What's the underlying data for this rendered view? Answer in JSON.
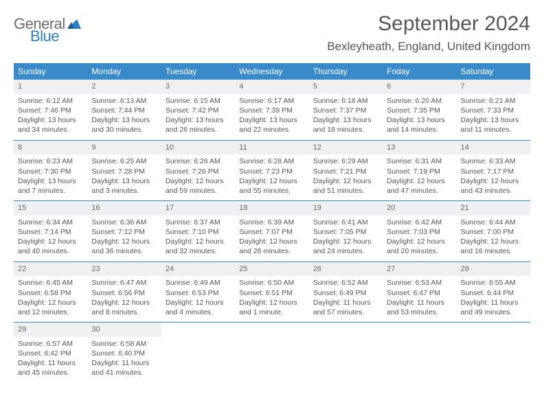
{
  "logo": {
    "word1": "General",
    "word2": "Blue",
    "accent_color": "#2f7fbf",
    "gray_color": "#6a6a6a"
  },
  "header": {
    "month": "September 2024",
    "location": "Bexleyheath, England, United Kingdom"
  },
  "colors": {
    "header_bg": "#3a8ac9",
    "row_divider": "#3a8ac9",
    "daynum_bg": "#eef0f1",
    "text": "#555555"
  },
  "weekdays": [
    "Sunday",
    "Monday",
    "Tuesday",
    "Wednesday",
    "Thursday",
    "Friday",
    "Saturday"
  ],
  "weeks": [
    [
      {
        "n": "1",
        "sr": "Sunrise: 6:12 AM",
        "ss": "Sunset: 7:46 PM",
        "d1": "Daylight: 13 hours",
        "d2": "and 34 minutes."
      },
      {
        "n": "2",
        "sr": "Sunrise: 6:13 AM",
        "ss": "Sunset: 7:44 PM",
        "d1": "Daylight: 13 hours",
        "d2": "and 30 minutes."
      },
      {
        "n": "3",
        "sr": "Sunrise: 6:15 AM",
        "ss": "Sunset: 7:42 PM",
        "d1": "Daylight: 13 hours",
        "d2": "and 26 minutes."
      },
      {
        "n": "4",
        "sr": "Sunrise: 6:17 AM",
        "ss": "Sunset: 7:39 PM",
        "d1": "Daylight: 13 hours",
        "d2": "and 22 minutes."
      },
      {
        "n": "5",
        "sr": "Sunrise: 6:18 AM",
        "ss": "Sunset: 7:37 PM",
        "d1": "Daylight: 13 hours",
        "d2": "and 18 minutes."
      },
      {
        "n": "6",
        "sr": "Sunrise: 6:20 AM",
        "ss": "Sunset: 7:35 PM",
        "d1": "Daylight: 13 hours",
        "d2": "and 14 minutes."
      },
      {
        "n": "7",
        "sr": "Sunrise: 6:21 AM",
        "ss": "Sunset: 7:33 PM",
        "d1": "Daylight: 13 hours",
        "d2": "and 11 minutes."
      }
    ],
    [
      {
        "n": "8",
        "sr": "Sunrise: 6:23 AM",
        "ss": "Sunset: 7:30 PM",
        "d1": "Daylight: 13 hours",
        "d2": "and 7 minutes."
      },
      {
        "n": "9",
        "sr": "Sunrise: 6:25 AM",
        "ss": "Sunset: 7:28 PM",
        "d1": "Daylight: 13 hours",
        "d2": "and 3 minutes."
      },
      {
        "n": "10",
        "sr": "Sunrise: 6:26 AM",
        "ss": "Sunset: 7:26 PM",
        "d1": "Daylight: 12 hours",
        "d2": "and 59 minutes."
      },
      {
        "n": "11",
        "sr": "Sunrise: 6:28 AM",
        "ss": "Sunset: 7:23 PM",
        "d1": "Daylight: 12 hours",
        "d2": "and 55 minutes."
      },
      {
        "n": "12",
        "sr": "Sunrise: 6:29 AM",
        "ss": "Sunset: 7:21 PM",
        "d1": "Daylight: 12 hours",
        "d2": "and 51 minutes."
      },
      {
        "n": "13",
        "sr": "Sunrise: 6:31 AM",
        "ss": "Sunset: 7:19 PM",
        "d1": "Daylight: 12 hours",
        "d2": "and 47 minutes."
      },
      {
        "n": "14",
        "sr": "Sunrise: 6:33 AM",
        "ss": "Sunset: 7:17 PM",
        "d1": "Daylight: 12 hours",
        "d2": "and 43 minutes."
      }
    ],
    [
      {
        "n": "15",
        "sr": "Sunrise: 6:34 AM",
        "ss": "Sunset: 7:14 PM",
        "d1": "Daylight: 12 hours",
        "d2": "and 40 minutes."
      },
      {
        "n": "16",
        "sr": "Sunrise: 6:36 AM",
        "ss": "Sunset: 7:12 PM",
        "d1": "Daylight: 12 hours",
        "d2": "and 36 minutes."
      },
      {
        "n": "17",
        "sr": "Sunrise: 6:37 AM",
        "ss": "Sunset: 7:10 PM",
        "d1": "Daylight: 12 hours",
        "d2": "and 32 minutes."
      },
      {
        "n": "18",
        "sr": "Sunrise: 6:39 AM",
        "ss": "Sunset: 7:07 PM",
        "d1": "Daylight: 12 hours",
        "d2": "and 28 minutes."
      },
      {
        "n": "19",
        "sr": "Sunrise: 6:41 AM",
        "ss": "Sunset: 7:05 PM",
        "d1": "Daylight: 12 hours",
        "d2": "and 24 minutes."
      },
      {
        "n": "20",
        "sr": "Sunrise: 6:42 AM",
        "ss": "Sunset: 7:03 PM",
        "d1": "Daylight: 12 hours",
        "d2": "and 20 minutes."
      },
      {
        "n": "21",
        "sr": "Sunrise: 6:44 AM",
        "ss": "Sunset: 7:00 PM",
        "d1": "Daylight: 12 hours",
        "d2": "and 16 minutes."
      }
    ],
    [
      {
        "n": "22",
        "sr": "Sunrise: 6:45 AM",
        "ss": "Sunset: 6:58 PM",
        "d1": "Daylight: 12 hours",
        "d2": "and 12 minutes."
      },
      {
        "n": "23",
        "sr": "Sunrise: 6:47 AM",
        "ss": "Sunset: 6:56 PM",
        "d1": "Daylight: 12 hours",
        "d2": "and 8 minutes."
      },
      {
        "n": "24",
        "sr": "Sunrise: 6:49 AM",
        "ss": "Sunset: 6:53 PM",
        "d1": "Daylight: 12 hours",
        "d2": "and 4 minutes."
      },
      {
        "n": "25",
        "sr": "Sunrise: 6:50 AM",
        "ss": "Sunset: 6:51 PM",
        "d1": "Daylight: 12 hours",
        "d2": "and 1 minute."
      },
      {
        "n": "26",
        "sr": "Sunrise: 6:52 AM",
        "ss": "Sunset: 6:49 PM",
        "d1": "Daylight: 11 hours",
        "d2": "and 57 minutes."
      },
      {
        "n": "27",
        "sr": "Sunrise: 6:53 AM",
        "ss": "Sunset: 6:47 PM",
        "d1": "Daylight: 11 hours",
        "d2": "and 53 minutes."
      },
      {
        "n": "28",
        "sr": "Sunrise: 6:55 AM",
        "ss": "Sunset: 6:44 PM",
        "d1": "Daylight: 11 hours",
        "d2": "and 49 minutes."
      }
    ],
    [
      {
        "n": "29",
        "sr": "Sunrise: 6:57 AM",
        "ss": "Sunset: 6:42 PM",
        "d1": "Daylight: 11 hours",
        "d2": "and 45 minutes."
      },
      {
        "n": "30",
        "sr": "Sunrise: 6:58 AM",
        "ss": "Sunset: 6:40 PM",
        "d1": "Daylight: 11 hours",
        "d2": "and 41 minutes."
      },
      {
        "empty": true
      },
      {
        "empty": true
      },
      {
        "empty": true
      },
      {
        "empty": true
      },
      {
        "empty": true
      }
    ]
  ]
}
